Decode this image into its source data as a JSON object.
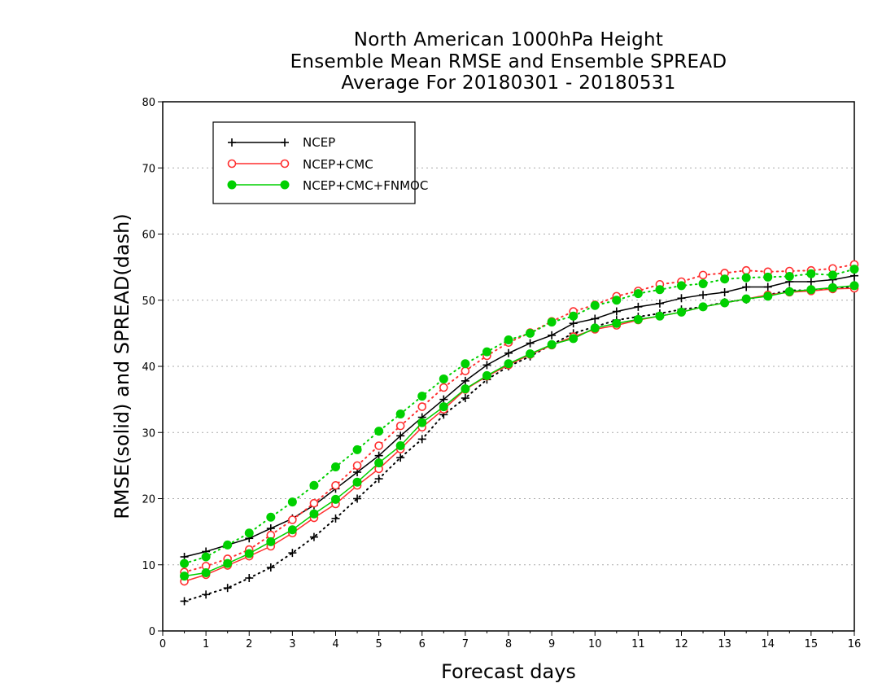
{
  "chart_data": {
    "type": "line",
    "title_lines": [
      "North American 1000hPa Height",
      "Ensemble Mean RMSE and Ensemble SPREAD",
      "Average For 20180301 - 20180531"
    ],
    "xlabel": "Forecast days",
    "ylabel": "RMSE(solid) and SPREAD(dash)",
    "xlim": [
      0,
      16
    ],
    "ylim": [
      0,
      80
    ],
    "xticks": [
      0,
      1,
      2,
      3,
      4,
      5,
      6,
      7,
      8,
      9,
      10,
      11,
      12,
      13,
      14,
      15,
      16
    ],
    "yticks": [
      0,
      10,
      20,
      30,
      40,
      50,
      60,
      70,
      80
    ],
    "grid": "horizontal dotted",
    "legend_placement": "top-left",
    "x": [
      0.5,
      1,
      1.5,
      2,
      2.5,
      3,
      3.5,
      4,
      4.5,
      5,
      5.5,
      6,
      6.5,
      7,
      7.5,
      8,
      8.5,
      9,
      9.5,
      10,
      10.5,
      11,
      11.5,
      12,
      12.5,
      13,
      13.5,
      14,
      14.5,
      15,
      15.5,
      16
    ],
    "series": [
      {
        "name": "NCEP",
        "color": "#000000",
        "marker": "plus",
        "rmse": [
          11.2,
          12.0,
          13.0,
          14.0,
          15.5,
          17.0,
          19.0,
          21.5,
          24.0,
          26.5,
          29.5,
          32.3,
          35.0,
          37.8,
          40.2,
          42.0,
          43.5,
          44.7,
          46.5,
          47.2,
          48.3,
          49.0,
          49.5,
          50.3,
          50.8,
          51.2,
          52.0,
          52.0,
          52.8,
          52.8,
          53.1,
          53.7
        ],
        "spread": [
          4.5,
          5.5,
          6.5,
          8.0,
          9.6,
          11.8,
          14.2,
          17.0,
          20.0,
          23.0,
          26.2,
          29.0,
          32.7,
          35.2,
          38.0,
          40.0,
          41.5,
          43.3,
          45.0,
          46.0,
          47.0,
          47.5,
          48.0,
          48.6,
          49.0,
          49.7,
          50.1,
          50.8,
          51.5,
          51.5,
          51.8,
          52.0
        ]
      },
      {
        "name": "NCEP+CMC",
        "color": "#ff2f2f",
        "marker": "open-circle",
        "rmse": [
          7.5,
          8.5,
          9.9,
          11.3,
          12.8,
          14.8,
          17.1,
          19.2,
          22.0,
          24.5,
          27.5,
          30.8,
          33.5,
          36.5,
          38.5,
          40.2,
          41.8,
          43.2,
          44.5,
          45.6,
          46.2,
          47.0,
          47.6,
          48.2,
          49.0,
          49.6,
          50.2,
          50.8,
          51.2,
          51.4,
          51.7,
          51.8
        ],
        "spread": [
          8.9,
          9.8,
          10.9,
          12.3,
          14.5,
          16.8,
          19.3,
          22.0,
          25.0,
          28.0,
          31.0,
          33.9,
          36.8,
          39.3,
          41.6,
          43.6,
          45.1,
          46.8,
          48.3,
          49.3,
          50.6,
          51.4,
          52.4,
          52.8,
          53.8,
          54.1,
          54.5,
          54.3,
          54.4,
          54.5,
          54.8,
          55.4
        ]
      },
      {
        "name": "NCEP+CMC+FNMOC",
        "color": "#00d000",
        "marker": "filled-circle",
        "rmse": [
          8.3,
          8.8,
          10.2,
          11.7,
          13.5,
          15.3,
          17.7,
          19.9,
          22.5,
          25.4,
          28.0,
          31.5,
          33.9,
          36.6,
          38.6,
          40.4,
          41.9,
          43.3,
          44.2,
          45.8,
          46.5,
          47.1,
          47.6,
          48.2,
          49.0,
          49.6,
          50.2,
          50.6,
          51.3,
          51.6,
          51.9,
          52.2
        ],
        "spread": [
          10.2,
          11.2,
          13.0,
          14.8,
          17.2,
          19.5,
          22.0,
          24.8,
          27.4,
          30.2,
          32.8,
          35.5,
          38.1,
          40.4,
          42.2,
          44.0,
          45.0,
          46.7,
          47.6,
          49.2,
          50.0,
          51.0,
          51.6,
          52.2,
          52.5,
          53.2,
          53.4,
          53.5,
          53.6,
          54.0,
          53.8,
          54.7
        ]
      }
    ]
  }
}
